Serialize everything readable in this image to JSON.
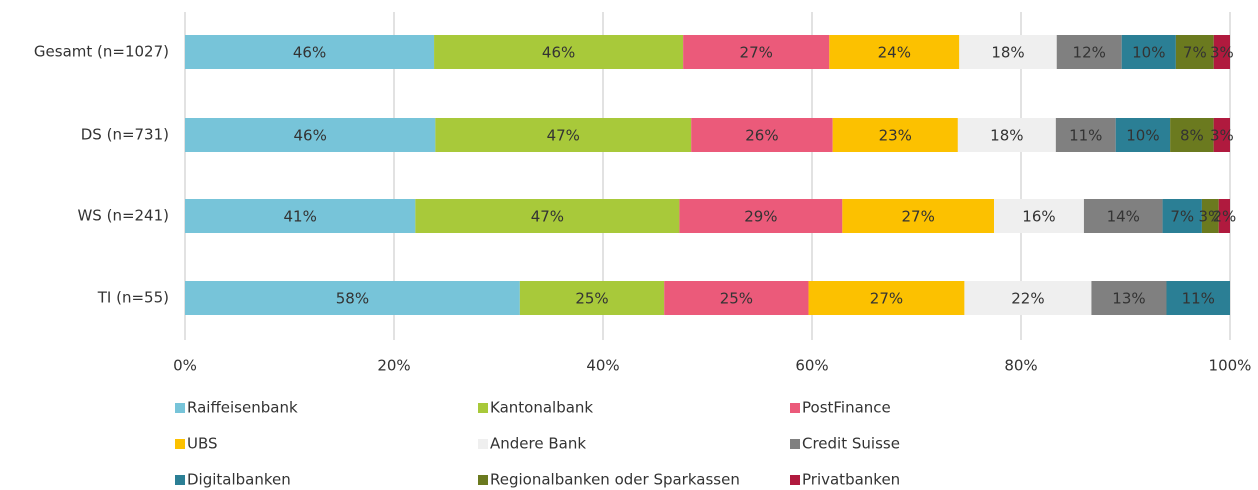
{
  "chart_data": {
    "type": "bar",
    "orientation": "horizontal",
    "stacked": "percent",
    "categories": [
      "Gesamt (n=1027)",
      "DS (n=731)",
      "WS (n=241)",
      "TI (n=55)"
    ],
    "series": [
      {
        "name": "Raiffeisenbank",
        "color": "#77c4d9",
        "values": [
          46,
          46,
          41,
          58
        ],
        "value_labels": [
          "46%",
          "46%",
          "41%",
          "58%"
        ]
      },
      {
        "name": "Kantonalbank",
        "color": "#a8c93a",
        "values": [
          46,
          47,
          47,
          25
        ],
        "value_labels": [
          "46%",
          "47%",
          "47%",
          "25%"
        ]
      },
      {
        "name": "PostFinance",
        "color": "#eb5a7a",
        "values": [
          27,
          26,
          29,
          25
        ],
        "value_labels": [
          "27%",
          "26%",
          "29%",
          "25%"
        ]
      },
      {
        "name": "UBS",
        "color": "#fcc100",
        "values": [
          24,
          23,
          27,
          27
        ],
        "value_labels": [
          "24%",
          "23%",
          "27%",
          "27%"
        ]
      },
      {
        "name": "Andere Bank",
        "color": "#efefef",
        "values": [
          18,
          18,
          16,
          22
        ],
        "value_labels": [
          "18%",
          "18%",
          "16%",
          "22%"
        ]
      },
      {
        "name": "Credit Suisse",
        "color": "#808080",
        "values": [
          12,
          11,
          14,
          13
        ],
        "value_labels": [
          "12%",
          "11%",
          "14%",
          "13%"
        ]
      },
      {
        "name": "Digitalbanken",
        "color": "#2b7f95",
        "values": [
          10,
          10,
          7,
          11
        ],
        "value_labels": [
          "10%",
          "10%",
          "7%",
          "11%"
        ]
      },
      {
        "name": "Regionalbanken oder Sparkassen",
        "color": "#6b7a1f",
        "values": [
          7,
          8,
          3,
          null
        ],
        "value_labels": [
          "7%",
          "8%",
          "3%",
          null
        ]
      },
      {
        "name": "Privatbanken",
        "color": "#b01a3e",
        "values": [
          3,
          3,
          2,
          null
        ],
        "value_labels": [
          "3%",
          "3%",
          "2%",
          null
        ]
      }
    ],
    "xlim": [
      0,
      100
    ],
    "xticks": [
      {
        "value": 0,
        "label": "0%"
      },
      {
        "value": 20,
        "label": "20%"
      },
      {
        "value": 40,
        "label": "40%"
      },
      {
        "value": 60,
        "label": "60%"
      },
      {
        "value": 80,
        "label": "80%"
      },
      {
        "value": 100,
        "label": "100%"
      }
    ],
    "grid": true,
    "legend": "bottom"
  }
}
